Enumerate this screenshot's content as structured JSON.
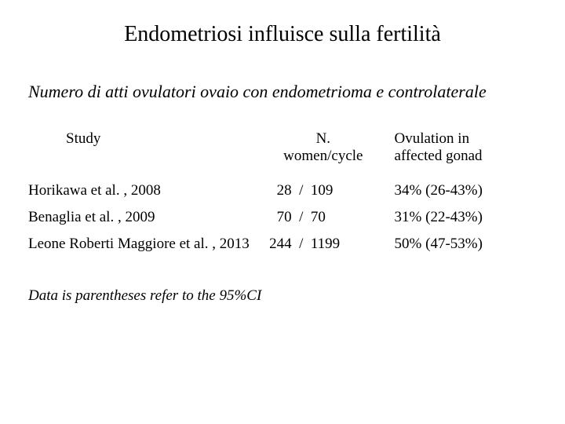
{
  "title": "Endometriosi influisce sulla fertilità",
  "subtitle": "Numero di atti ovulatori ovaio con endometrioma e controlaterale",
  "table": {
    "type": "table",
    "columns": [
      "Study",
      "N.\nwomen/cycle",
      "Ovulation in\n affected gonad"
    ],
    "header": {
      "study": "Study",
      "n_line1": "N.",
      "n_line2": "women/cycle",
      "ov_line1": "Ovulation in",
      "ov_line2": " affected gonad"
    },
    "rows": [
      {
        "study": "Horikawa et al. , 2008",
        "n": "  28  /  109",
        "ov": "34% (26-43%)"
      },
      {
        "study": "Benaglia et al. , 2009",
        "n": "  70  /  70",
        "ov": "31% (22-43%)"
      },
      {
        "study": "Leone Roberti Maggiore et al. , 2013",
        "n": "244  /  1199",
        "ov": "50% (47-53%)"
      }
    ],
    "font_size_pt": 19,
    "text_color": "#000000",
    "background_color": "#ffffff"
  },
  "footnote": "Data is parentheses refer to the 95%CI",
  "colors": {
    "background": "#ffffff",
    "text": "#000000"
  },
  "typography": {
    "family": "Times New Roman",
    "title_size_pt": 28,
    "subtitle_size_pt": 22,
    "body_size_pt": 19
  }
}
